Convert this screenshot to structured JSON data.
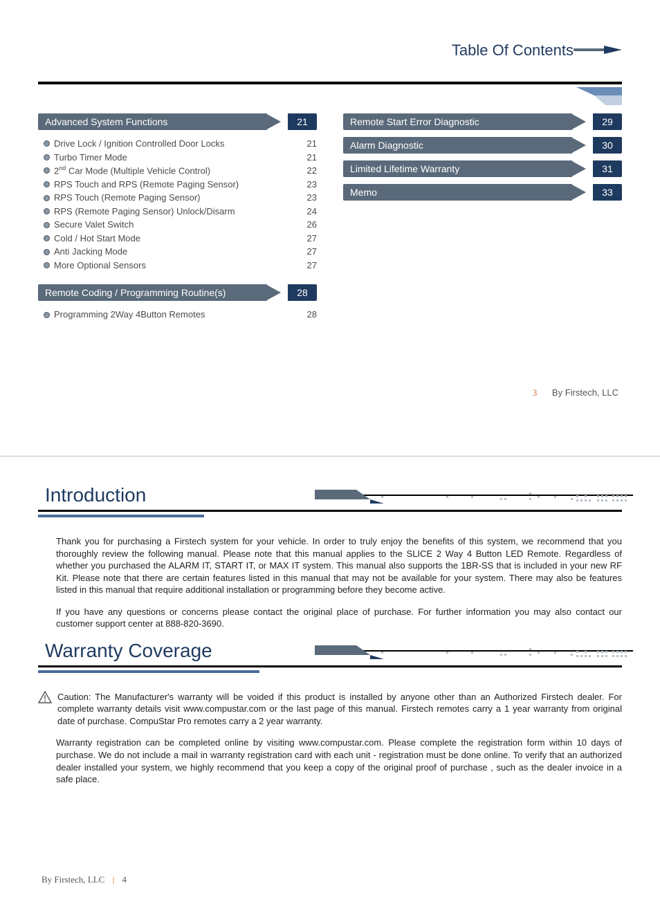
{
  "colors": {
    "primary_blue": "#1f3a5f",
    "section_grey": "#5a6a7a",
    "section_blue": "#1f3a5f",
    "accent_orange": "#cf6a2a",
    "underline_blue": "#4a6a9a",
    "dot_pattern": "#b8c0c8"
  },
  "header": {
    "title": "Table Of Contents"
  },
  "toc": {
    "left": [
      {
        "label": "Advanced System Functions",
        "page": "21",
        "items": [
          {
            "text": "Drive Lock / Ignition Controlled Door Locks",
            "page": "21"
          },
          {
            "text": "Turbo Timer Mode",
            "page": "21"
          },
          {
            "text_html": "2<sup>nd</sup> Car Mode (Multiple Vehicle Control)",
            "page": "22"
          },
          {
            "text": "RPS Touch and RPS (Remote Paging Sensor)",
            "page": "23"
          },
          {
            "text": "RPS Touch (Remote Paging Sensor)",
            "page": "23"
          },
          {
            "text": "RPS (Remote Paging Sensor) Unlock/Disarm",
            "page": "24"
          },
          {
            "text": "Secure Valet Switch",
            "page": "26"
          },
          {
            "text": "Cold / Hot Start Mode",
            "page": "27"
          },
          {
            "text": "Anti Jacking Mode",
            "page": "27"
          },
          {
            "text": "More Optional Sensors",
            "page": "27"
          }
        ]
      },
      {
        "label": "Remote Coding / Programming Routine(s)",
        "page": "28",
        "items": [
          {
            "text": "Programming 2Way 4Button Remotes",
            "page": "28"
          }
        ]
      }
    ],
    "right": [
      {
        "label": "Remote Start Error Diagnostic",
        "page": "29"
      },
      {
        "label": "Alarm Diagnostic",
        "page": "30"
      },
      {
        "label": "Limited Lifetime Warranty",
        "page": "31"
      },
      {
        "label": "Memo",
        "page": "33"
      }
    ]
  },
  "footer_right": {
    "page_num": "3",
    "byline": "By Firstech, LLC"
  },
  "section_intro": {
    "title": "Introduction",
    "p1": "Thank you for purchasing a Firstech system for your vehicle. In order to truly enjoy the benefits of this system, we recommend that you thoroughly review the following manual. Please note that this manual applies to the SLICE 2 Way 4 Button LED Remote. Regardless of whether you purchased the ALARM IT, START IT, or MAX IT system. This manual also supports the 1BR-SS that is included in your new RF Kit. Please note that there are certain features listed in this manual that may not be available for your system. There may also be features listed in this manual that require additional installation or programming before they become active.",
    "p2": "If you have any questions or concerns please contact the original place of purchase. For further information you may also contact our customer support center at 888-820-3690."
  },
  "section_warranty": {
    "title": "Warranty Coverage",
    "caution": "Caution: The Manufacturer's warranty will be voided if this product is installed by anyone other than an Authorized Firstech dealer. For complete warranty details visit www.compustar.com or the last page of this manual. Firstech remotes carry a 1 year warranty from original date of purchase. CompuStar Pro remotes carry a 2 year warranty.",
    "p2": "Warranty registration can be completed online by visiting www.compustar.com. Please complete the registration form within 10 days of purchase. We do not include a mail in warranty registration card with each unit - registration must be done online. To verify that an authorized dealer installed your system, we highly recommend that you keep a copy of the original proof of purchase , such as the dealer invoice in a safe place."
  },
  "footer_left": {
    "byline": "By Firstech, LLC",
    "page_num": "4"
  }
}
